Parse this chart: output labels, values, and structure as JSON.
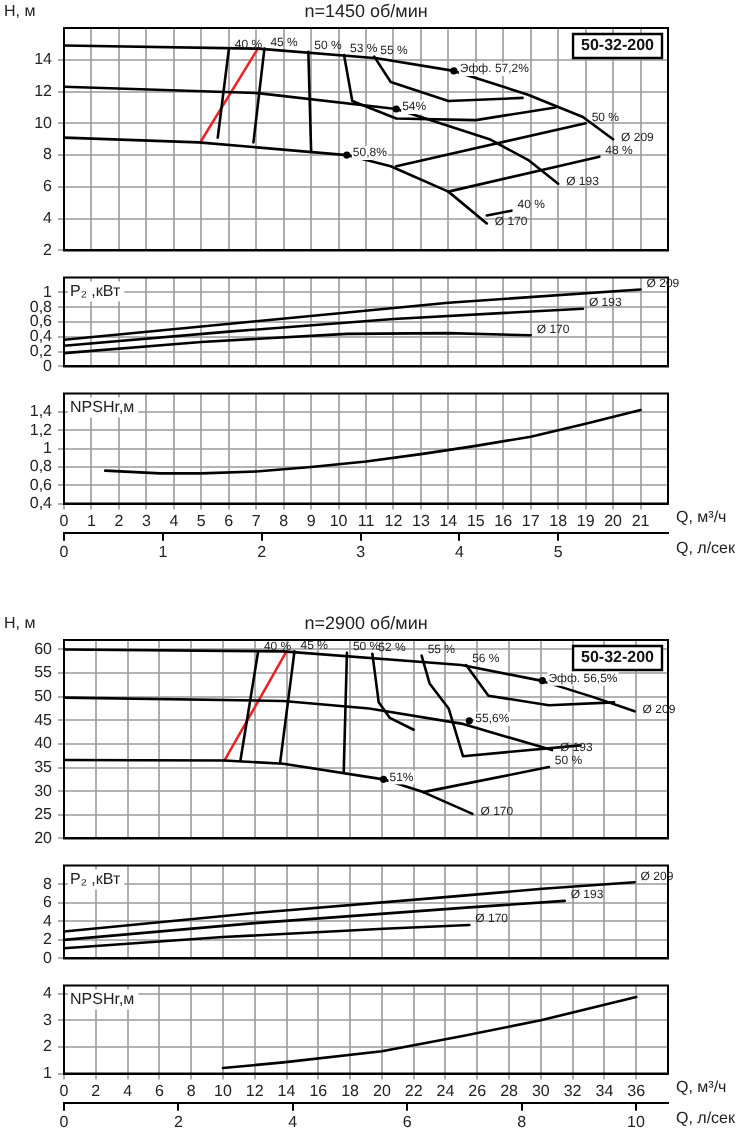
{
  "chart_data": [
    {
      "type": "line",
      "title": "n=1450 об/мин",
      "ylabel": "H, м",
      "xlim": [
        0,
        22
      ],
      "xticks": [
        0,
        1,
        2,
        3,
        4,
        5,
        6,
        7,
        8,
        9,
        10,
        11,
        12,
        13,
        14,
        15,
        16,
        17,
        18,
        19,
        20,
        21
      ],
      "ylim": [
        2,
        16
      ],
      "yticks": [
        2,
        4,
        6,
        8,
        10,
        12,
        14
      ],
      "tick_labels": "y",
      "grid": true,
      "marker": "none",
      "line_style": "solid",
      "annotations": [
        "50-32-200",
        {
          "text": "Эфф. 57,2%",
          "x": 14.2,
          "y": 13.3
        },
        {
          "text": "54%",
          "x": 12.1,
          "y": 10.9
        },
        {
          "text": "50,8%",
          "x": 10.3,
          "y": 8.0
        }
      ],
      "series": [
        {
          "name": "Ø 209",
          "color": "#000000",
          "x": [
            0,
            7.06,
            11.4,
            14.2,
            16.9,
            18.9,
            20
          ],
          "values": [
            14.9,
            14.7,
            14.1,
            13.3,
            11.8,
            10.4,
            9.0
          ]
        },
        {
          "name": "Ø 193",
          "color": "#000000",
          "x": [
            0,
            7.06,
            12.1,
            15.5,
            16.9,
            18
          ],
          "values": [
            12.3,
            11.9,
            10.9,
            9.0,
            7.7,
            6.2
          ]
        },
        {
          "name": "Ø 170",
          "color": "#000000",
          "x": [
            0,
            4.9,
            10.3,
            11.9,
            14,
            15.4
          ],
          "values": [
            9.1,
            8.8,
            8.0,
            7.3,
            5.7,
            3.7
          ]
        },
        {
          "name": "40 %",
          "color": "#000000",
          "x": [
            5.6,
            6.0
          ],
          "values": [
            9.1,
            14.6
          ]
        },
        {
          "name": "45 %",
          "color": "#000000",
          "x": [
            6.9,
            7.3
          ],
          "values": [
            8.8,
            14.7
          ]
        },
        {
          "name": "50 %",
          "color": "#000000",
          "x": [
            9.0,
            8.9
          ],
          "values": [
            8.3,
            14.5
          ]
        },
        {
          "name": "53 %",
          "color": "#000000",
          "x": [
            17.9,
            15,
            12.1,
            10.5,
            10.2
          ],
          "values": [
            11.0,
            10.2,
            10.3,
            11.4,
            14.3
          ]
        },
        {
          "name": "55 %",
          "color": "#000000",
          "x": [
            16.7,
            14.0,
            11.9,
            11.3
          ],
          "values": [
            11.6,
            11.4,
            12.6,
            14.2
          ]
        },
        {
          "name": "50 %",
          "color": "#000000",
          "x": [
            12.1,
            19
          ],
          "values": [
            7.3,
            10.0
          ]
        },
        {
          "name": "48 %",
          "color": "#000000",
          "x": [
            14.0,
            19.5
          ],
          "values": [
            5.7,
            7.9
          ]
        },
        {
          "name": "40 %",
          "color": "#000000",
          "x": [
            15.4,
            16.3
          ],
          "values": [
            4.2,
            4.5
          ]
        },
        {
          "color": "#e8262a",
          "x": [
            5.0,
            7.06
          ],
          "values": [
            8.9,
            14.7
          ]
        }
      ]
    },
    {
      "type": "line",
      "ylabel": "P₂ ,кВт",
      "xlim": [
        0,
        22
      ],
      "xticks": [
        0,
        1,
        2,
        3,
        4,
        5,
        6,
        7,
        8,
        9,
        10,
        11,
        12,
        13,
        14,
        15,
        16,
        17,
        18,
        19,
        20,
        21
      ],
      "ylim": [
        0,
        1.2
      ],
      "yticks": [
        0,
        {
          "value": 0.2,
          "label": "0,2"
        },
        {
          "value": 0.4,
          "label": "0,4"
        },
        {
          "value": 0.6,
          "label": "0,6"
        },
        {
          "value": 0.8,
          "label": "0,8"
        },
        1
      ],
      "tick_labels": "y",
      "grid": true,
      "marker": "none",
      "line_style": "solid",
      "series": [
        {
          "name": "Ø 209",
          "color": "#000000",
          "x": [
            0,
            7,
            14,
            21
          ],
          "values": [
            0.36,
            0.61,
            0.86,
            1.04
          ]
        },
        {
          "name": "Ø 193",
          "color": "#000000",
          "x": [
            0,
            6,
            12,
            18.9
          ],
          "values": [
            0.28,
            0.47,
            0.64,
            0.78
          ]
        },
        {
          "name": "Ø 170",
          "color": "#000000",
          "x": [
            0,
            5,
            10.3,
            14,
            17
          ],
          "values": [
            0.18,
            0.33,
            0.44,
            0.45,
            0.42
          ]
        }
      ]
    },
    {
      "type": "line",
      "ylabel": "NPSHr,м",
      "xlabel": "Q, м³/ч",
      "x2label": "Q, л/сек",
      "xlim": [
        0,
        22
      ],
      "xticks": [
        0,
        1,
        2,
        3,
        4,
        5,
        6,
        7,
        8,
        9,
        10,
        11,
        12,
        13,
        14,
        15,
        16,
        17,
        18,
        19,
        20,
        21
      ],
      "x2lim": [
        0,
        6.11
      ],
      "x2ticks": [
        0,
        1,
        2,
        3,
        4,
        5
      ],
      "ylim": [
        0.4,
        1.6
      ],
      "yticks": [
        {
          "value": 0.4,
          "label": "0,4"
        },
        {
          "value": 0.6,
          "label": "0,6"
        },
        {
          "value": 0.8,
          "label": "0,8"
        },
        1,
        {
          "value": 1.2,
          "label": "1,2"
        },
        {
          "value": 1.4,
          "label": "1,4"
        }
      ],
      "grid": true,
      "marker": "none",
      "line_style": "solid",
      "series": [
        {
          "color": "#000000",
          "x": [
            1.5,
            3.5,
            5,
            7,
            9,
            11,
            13,
            15,
            17,
            19,
            21
          ],
          "values": [
            0.76,
            0.73,
            0.73,
            0.75,
            0.8,
            0.86,
            0.94,
            1.03,
            1.13,
            1.27,
            1.42
          ]
        }
      ]
    },
    {
      "type": "line",
      "title": "n=2900 об/мин",
      "ylabel": "H, м",
      "xlim": [
        0,
        38
      ],
      "xticks": [
        0,
        2,
        4,
        6,
        8,
        10,
        12,
        14,
        16,
        18,
        20,
        22,
        24,
        26,
        28,
        30,
        32,
        34,
        36
      ],
      "ylim": [
        20,
        62
      ],
      "yticks": [
        20,
        25,
        30,
        35,
        40,
        45,
        50,
        55,
        60
      ],
      "tick_labels": "y",
      "grid": true,
      "marker": "none",
      "line_style": "solid",
      "annotations": [
        "50-32-200",
        {
          "text": "Эфф. 56,5%",
          "x": 30.1,
          "y": 53.4
        },
        {
          "text": "55,6%",
          "x": 25.5,
          "y": 44.9
        },
        {
          "text": "51%",
          "x": 20.1,
          "y": 32.5
        }
      ],
      "series": [
        {
          "name": "Ø 209",
          "color": "#000000",
          "x": [
            0,
            13.8,
            25,
            30,
            33.4,
            35.9
          ],
          "values": [
            60,
            59.6,
            56.7,
            53.4,
            49.8,
            46.9
          ]
        },
        {
          "name": "Ø 193",
          "color": "#000000",
          "x": [
            0,
            13.8,
            19.2,
            25,
            30.7
          ],
          "values": [
            49.8,
            49.1,
            47.5,
            44.3,
            38.7
          ]
        },
        {
          "name": "Ø 170",
          "color": "#000000",
          "x": [
            0,
            10.1,
            13.8,
            20.1,
            22.6,
            25.7
          ],
          "values": [
            36.6,
            36.5,
            35.8,
            32.5,
            29.8,
            25.2
          ]
        },
        {
          "name": "40 %",
          "color": "#000000",
          "x": [
            11.1,
            12.2
          ],
          "values": [
            36.5,
            59.3
          ]
        },
        {
          "name": "45 %",
          "color": "#000000",
          "x": [
            13.6,
            14.5
          ],
          "values": [
            36.1,
            59.6
          ]
        },
        {
          "name": "50 %",
          "color": "#000000",
          "x": [
            17.6,
            17.8
          ],
          "values": [
            34.1,
            59.3
          ]
        },
        {
          "name": "52 %",
          "color": "#000000",
          "x": [
            22,
            20.5,
            19.8,
            19.4
          ],
          "values": [
            43,
            45.5,
            48.8,
            59.1
          ]
        },
        {
          "name": "55 %",
          "color": "#000000",
          "x": [
            32.5,
            25.1,
            24.2,
            23,
            22.5
          ],
          "values": [
            39.7,
            37.4,
            47.5,
            52.8,
            58.7
          ]
        },
        {
          "name": "56 %",
          "color": "#000000",
          "x": [
            34.6,
            30.5,
            26.7,
            25.3
          ],
          "values": [
            48.8,
            48.2,
            50.2,
            56.7
          ]
        },
        {
          "name": "50 %",
          "color": "#000000",
          "x": [
            22.6,
            30.5
          ],
          "values": [
            29.8,
            35.1
          ]
        },
        {
          "color": "#e8262a",
          "x": [
            10.1,
            14
          ],
          "values": [
            36.5,
            59.6
          ]
        }
      ]
    },
    {
      "type": "line",
      "ylabel": "P₂ ,кВт",
      "xlim": [
        0,
        38
      ],
      "xticks": [
        0,
        2,
        4,
        6,
        8,
        10,
        12,
        14,
        16,
        18,
        20,
        22,
        24,
        26,
        28,
        30,
        32,
        34,
        36
      ],
      "ylim": [
        0,
        10
      ],
      "yticks": [
        0,
        2,
        4,
        6,
        8
      ],
      "tick_labels": "y",
      "grid": true,
      "marker": "none",
      "line_style": "solid",
      "series": [
        {
          "name": "Ø 209",
          "color": "#000000",
          "x": [
            0,
            12,
            24,
            30.1,
            35.9
          ],
          "values": [
            2.9,
            4.9,
            6.6,
            7.5,
            8.2
          ]
        },
        {
          "name": "Ø 193",
          "color": "#000000",
          "x": [
            0,
            12,
            25.5,
            31.5
          ],
          "values": [
            2.0,
            3.8,
            5.5,
            6.2
          ]
        },
        {
          "name": "Ø 170",
          "color": "#000000",
          "x": [
            0,
            10,
            20.1,
            25.5
          ],
          "values": [
            1.1,
            2.3,
            3.2,
            3.6
          ]
        }
      ]
    },
    {
      "type": "line",
      "ylabel": "NPSHr,м",
      "xlabel": "Q, м³/ч",
      "x2label": "Q, л/сек",
      "xlim": [
        0,
        38
      ],
      "xticks": [
        0,
        2,
        4,
        6,
        8,
        10,
        12,
        14,
        16,
        18,
        20,
        22,
        24,
        26,
        28,
        30,
        32,
        34,
        36
      ],
      "x2lim": [
        0,
        10.56
      ],
      "x2ticks": [
        0,
        2,
        4,
        6,
        8,
        10
      ],
      "ylim": [
        1,
        4.3
      ],
      "yticks": [
        1,
        2,
        3,
        4
      ],
      "grid": true,
      "marker": "none",
      "line_style": "solid",
      "series": [
        {
          "color": "#000000",
          "x": [
            10,
            13.8,
            20,
            25,
            30,
            36
          ],
          "values": [
            1.21,
            1.42,
            1.84,
            2.4,
            3.0,
            3.87
          ]
        }
      ]
    }
  ]
}
